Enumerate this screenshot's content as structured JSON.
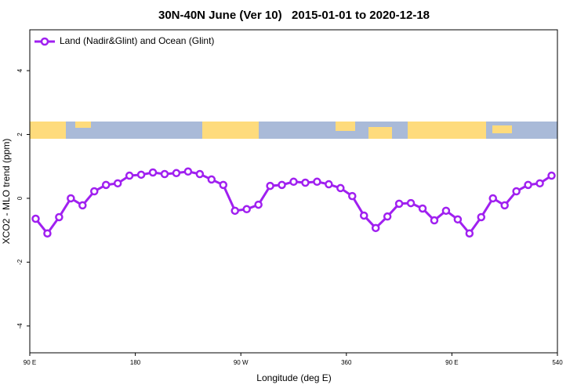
{
  "chart_data": {
    "type": "line",
    "title": "30N-40N June (Ver 10)   2015-01-01 to 2020-12-18",
    "x_label": "Longitude (deg E)",
    "y_label": "XCO2 - MLO trend (ppm)",
    "x": [
      95,
      105,
      115,
      125,
      135,
      145,
      155,
      165,
      175,
      185,
      195,
      205,
      215,
      225,
      235,
      245,
      255,
      265,
      275,
      285,
      295,
      305,
      315,
      325,
      335,
      345,
      355,
      365,
      375,
      385,
      395,
      405,
      415,
      425,
      435,
      445,
      455,
      465,
      475,
      485,
      495,
      505,
      515,
      525,
      535
    ],
    "series": [
      {
        "name": "Land (Nadir&Glint) and Ocean (Glint)",
        "color": "#a020f0",
        "values": [
          -0.64,
          -1.1,
          -0.59,
          0,
          -0.22,
          0.22,
          0.42,
          0.47,
          0.71,
          0.74,
          0.81,
          0.76,
          0.79,
          0.84,
          0.76,
          0.59,
          0.42,
          -0.39,
          -0.34,
          -0.2,
          0.39,
          0.42,
          0.52,
          0.49,
          0.52,
          0.44,
          0.32,
          0.07,
          -0.54,
          -0.93,
          -0.57,
          -0.17,
          -0.15,
          -0.32,
          -0.69,
          -0.39,
          -0.66,
          -1.1,
          -0.59,
          0,
          -0.22,
          0.22,
          0.42,
          0.47,
          0.71
        ]
      }
    ],
    "xlim": [
      90,
      540
    ],
    "ylim": [
      -4.84,
      5.28
    ],
    "xticks": [
      {
        "value": 90,
        "label": "90 E"
      },
      180,
      {
        "value": 270,
        "label": "90 W"
      },
      360,
      {
        "value": 450,
        "label": "90 E"
      },
      540
    ],
    "yticks": [
      -4,
      -2,
      0,
      2,
      4
    ],
    "legend": "top-left"
  }
}
